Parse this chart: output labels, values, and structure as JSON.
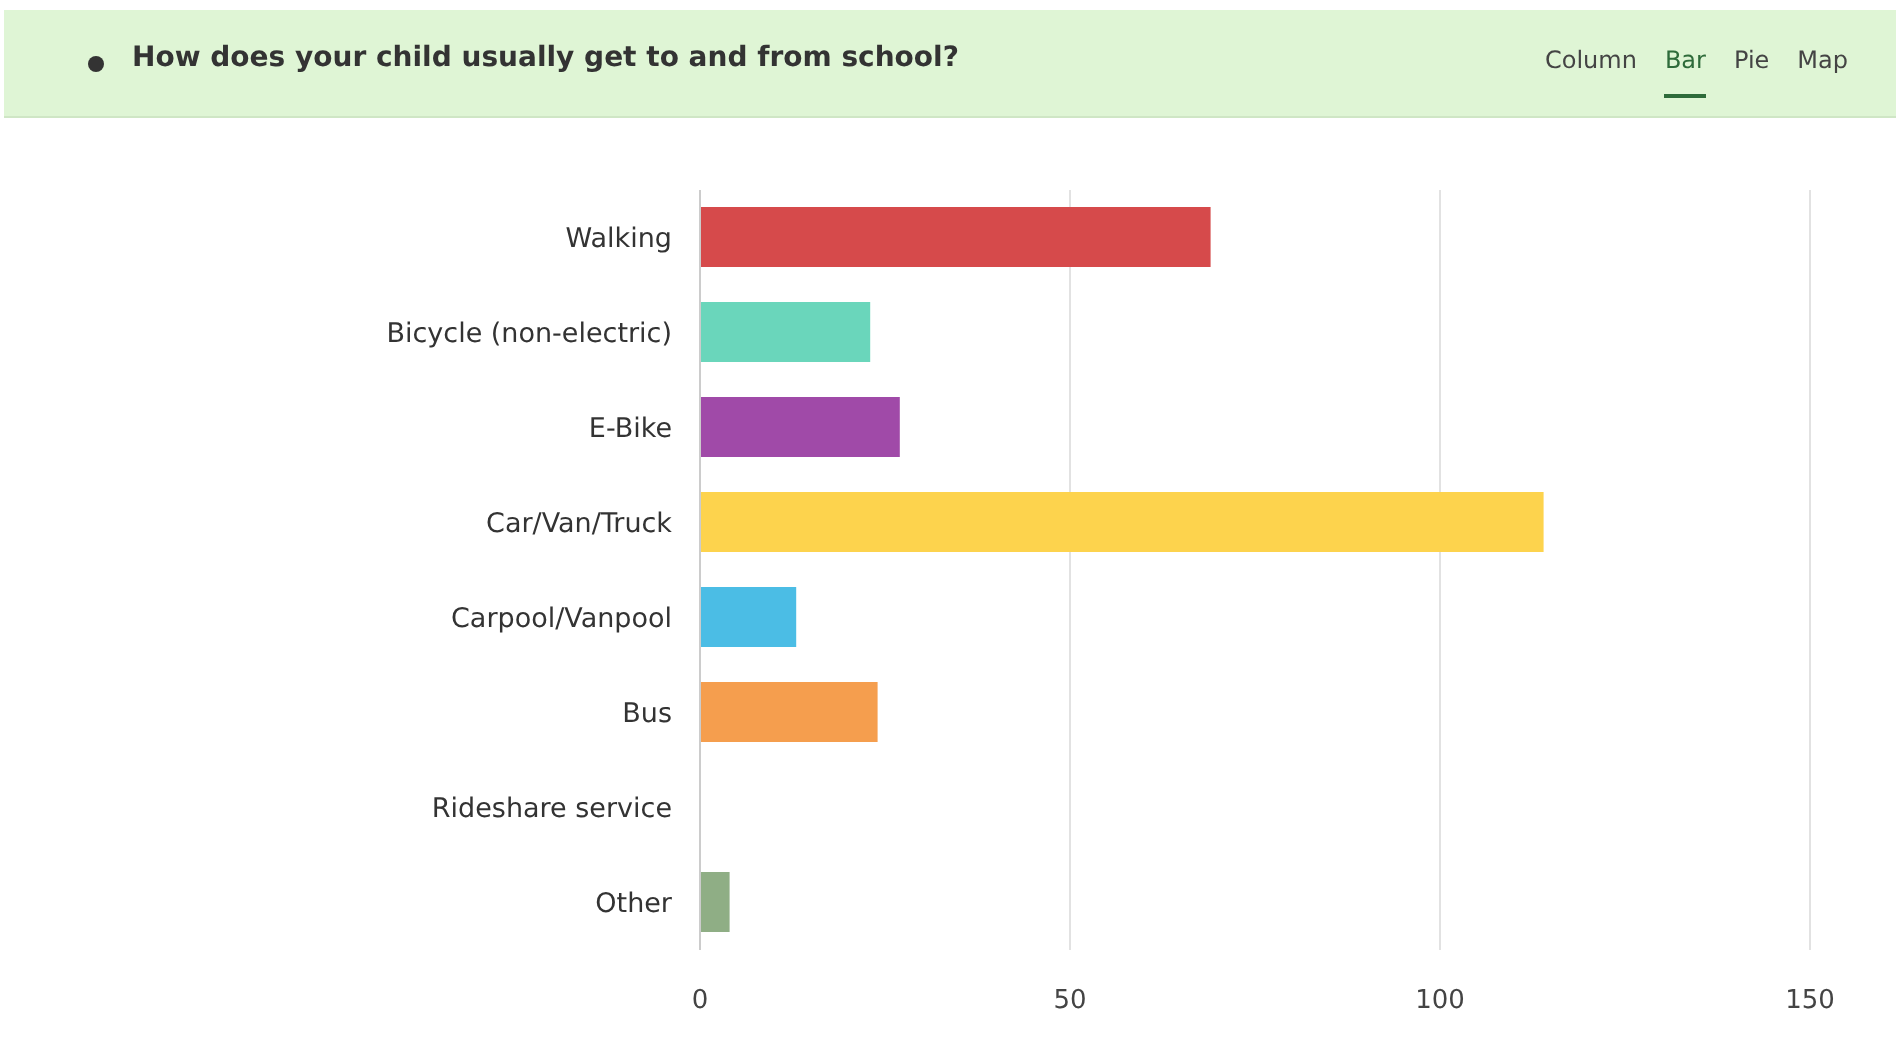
{
  "chart_data": {
    "type": "bar",
    "orientation": "horizontal",
    "title": "How does your child usually get to and from school?",
    "annotations": [
      "Column",
      "Bar",
      "Pie",
      "Map"
    ],
    "categories": [
      "Walking",
      "Bicycle (non-electric)",
      "E-Bike",
      "Car/Van/Truck",
      "Carpool/Vanpool",
      "Bus",
      "Rideshare service",
      "Other"
    ],
    "values": [
      69,
      23,
      27,
      114,
      13,
      24,
      0,
      4
    ],
    "colors": [
      "#d64a4b",
      "#6ad6bb",
      "#a04aa8",
      "#fdd34d",
      "#4bbde5",
      "#f59e4e",
      "#e07a9a",
      "#8fae85"
    ],
    "xlim": [
      0,
      150
    ],
    "xticks": [
      0,
      50,
      100,
      150
    ],
    "grid": "x"
  }
}
